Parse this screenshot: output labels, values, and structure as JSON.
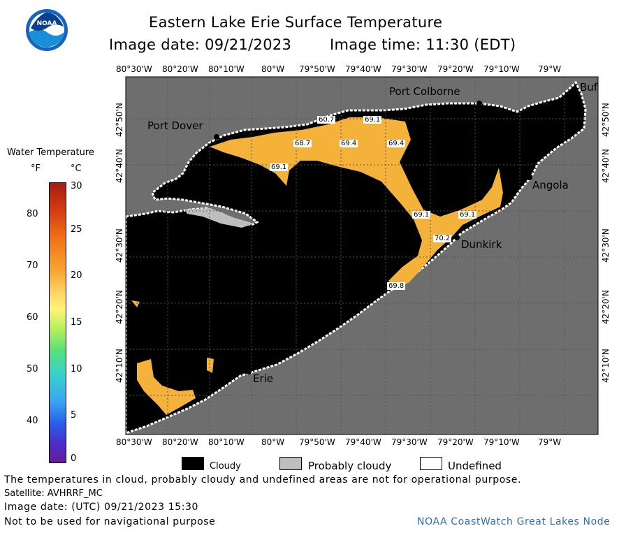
{
  "header": {
    "title": "Eastern Lake Erie Surface Temperature",
    "image_date": "Image date: 09/21/2023",
    "image_time": "Image time: 11:30 (EDT)"
  },
  "colorbar": {
    "title": "Water Temperature",
    "unit_f": "°F",
    "unit_c": "°C",
    "f_ticks": [
      "80",
      "70",
      "60",
      "50",
      "40"
    ],
    "c_ticks": [
      "30",
      "25",
      "20",
      "15",
      "10",
      "5",
      "0"
    ]
  },
  "map": {
    "top_lon": [
      "80°30'W",
      "80°20'W",
      "80°10'W",
      "80°W",
      "79°50'W",
      "79°40'W",
      "79°30'W",
      "79°20'W",
      "79°10'W",
      "79°W"
    ],
    "bottom_lon": [
      "80°30'W",
      "80°20'W",
      "80°10'W",
      "80°W",
      "79°50'W",
      "79°40'W",
      "79°30'W",
      "79°20'W",
      "79°10'W",
      "79°W"
    ],
    "lat": [
      "42°50'N",
      "42°40'N",
      "42°30'N",
      "42°20'N",
      "42°10'N"
    ],
    "cities": {
      "port_colborne": "Port Colborne",
      "buffalo": "Buf",
      "port_dover": "Port Dover",
      "angola": "Angola",
      "dunkirk": "Dunkirk",
      "erie": "Erie"
    },
    "temps": [
      "60.7",
      "69.1",
      "68.7",
      "69.4",
      "69.4",
      "69.1",
      "69.1",
      "69.1",
      "70.2",
      "69.8"
    ]
  },
  "legend": {
    "cloudy": "Cloudy",
    "probably_cloudy": "Probably cloudy",
    "undefined": "Undefined"
  },
  "footer": {
    "disclaimer": "The temperatures in cloud, probably cloudy and undefined areas are not for operational purpose.",
    "satellite": "Satellite: AVHRRF_MC",
    "utc_date": "Image date: (UTC) 09/21/2023  15:30",
    "nav": "Not to be used for navigational purpose",
    "credit": "NOAA CoastWatch Great Lakes Node"
  },
  "colors": {
    "land": "#6e6e6e",
    "cloud": "#000000",
    "probably_cloudy": "#bebebe",
    "water_warm": "#f5b23a",
    "credit_text": "#2f6fb8"
  }
}
